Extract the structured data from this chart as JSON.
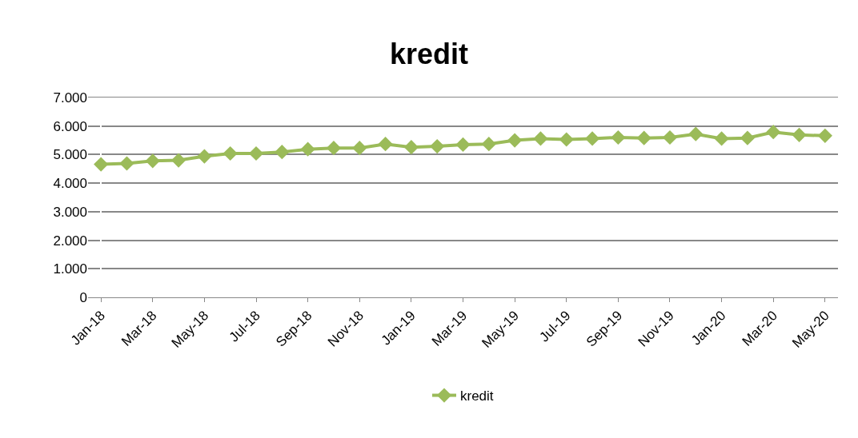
{
  "chart_data": {
    "type": "line",
    "title": "kredit",
    "categories": [
      "Jan-18",
      null,
      "Mar-18",
      null,
      "May-18",
      null,
      "Jul-18",
      null,
      "Sep-18",
      null,
      "Nov-18",
      null,
      "Jan-19",
      null,
      "Mar-19",
      null,
      "May-19",
      null,
      "Jul-19",
      null,
      "Sep-19",
      null,
      "Nov-19",
      null,
      "Jan-20",
      null,
      "Mar-20",
      null,
      "May-20"
    ],
    "series": [
      {
        "name": "kredit",
        "color": "#9bbb59",
        "values": [
          4660,
          4690,
          4780,
          4800,
          4940,
          5040,
          5040,
          5090,
          5190,
          5230,
          5230,
          5370,
          5260,
          5290,
          5350,
          5370,
          5500,
          5560,
          5530,
          5560,
          5600,
          5580,
          5600,
          5720,
          5560,
          5580,
          5790,
          5690,
          5660
        ]
      }
    ],
    "ylim": [
      0,
      7000
    ],
    "yticks": [
      {
        "value": 0,
        "label": "0"
      },
      {
        "value": 1000,
        "label": "1.000"
      },
      {
        "value": 2000,
        "label": "2.000"
      },
      {
        "value": 3000,
        "label": "3.000"
      },
      {
        "value": 4000,
        "label": "4.000"
      },
      {
        "value": 5000,
        "label": "5.000"
      },
      {
        "value": 6000,
        "label": "6.000"
      },
      {
        "value": 7000,
        "label": "7.000"
      }
    ],
    "grid": "y",
    "legend": "bottom",
    "marker": "diamond",
    "line_style": "solid"
  }
}
